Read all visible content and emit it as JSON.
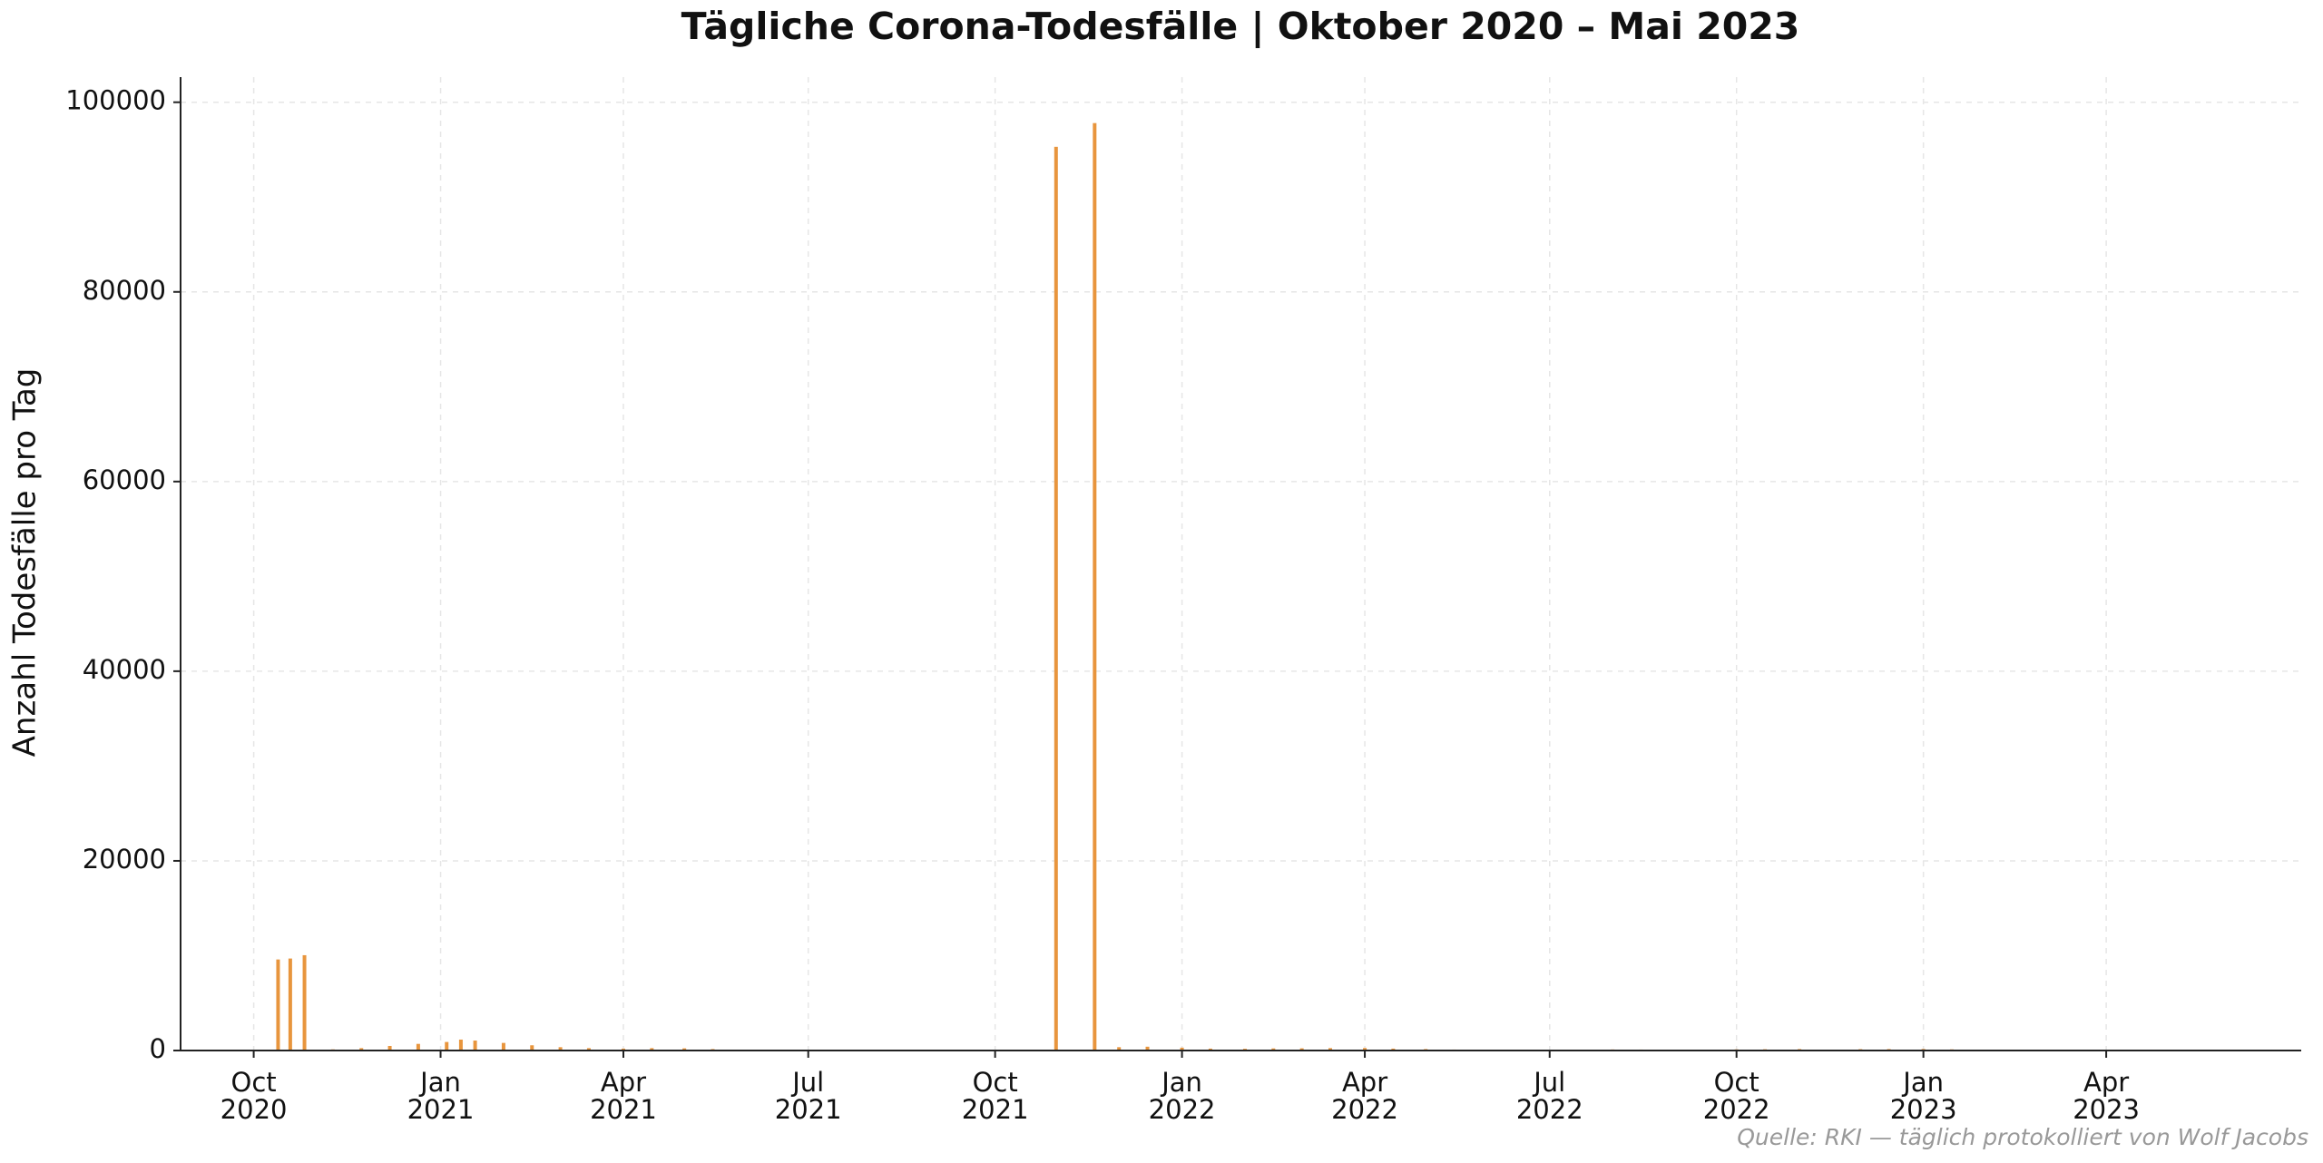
{
  "chart_data": {
    "type": "bar",
    "title": "Tägliche Corona-Todesfälle  |  Oktober 2020 – Mai 2023",
    "y_label": "Anzahl Todesfälle pro Tag",
    "source": "Quelle: RKI — täglich protokolliert von Wolf Jacobs",
    "color": "#e8953d",
    "grid": true,
    "x": [
      "2020-10-13",
      "2020-10-19",
      "2020-10-26",
      "2020-11-09",
      "2020-11-23",
      "2020-12-07",
      "2020-12-21",
      "2021-01-04",
      "2021-01-11",
      "2021-01-18",
      "2021-02-01",
      "2021-02-15",
      "2021-03-01",
      "2021-03-15",
      "2021-04-01",
      "2021-04-15",
      "2021-05-01",
      "2021-05-15",
      "2021-06-01",
      "2021-06-15",
      "2021-10-31",
      "2021-11-19",
      "2021-12-01",
      "2021-12-15",
      "2022-01-01",
      "2022-01-15",
      "2022-02-01",
      "2022-02-15",
      "2022-03-01",
      "2022-03-15",
      "2022-04-01",
      "2022-04-15",
      "2022-05-01",
      "2022-05-15",
      "2022-06-01",
      "2022-07-01",
      "2022-07-15",
      "2022-08-01",
      "2022-08-15",
      "2022-09-01",
      "2022-10-01",
      "2022-10-15",
      "2022-11-01",
      "2022-12-01",
      "2022-12-15",
      "2023-01-01",
      "2023-01-15",
      "2023-02-01",
      "2023-03-01",
      "2023-04-01",
      "2023-04-15"
    ],
    "values": [
      9600,
      9700,
      10050,
      120,
      250,
      480,
      700,
      900,
      1150,
      1050,
      800,
      550,
      350,
      250,
      200,
      250,
      230,
      150,
      80,
      40,
      95300,
      97800,
      350,
      400,
      300,
      200,
      180,
      220,
      230,
      250,
      260,
      200,
      150,
      100,
      60,
      50,
      80,
      110,
      100,
      80,
      120,
      130,
      150,
      140,
      150,
      160,
      120,
      80,
      50,
      30,
      20
    ],
    "xlim": [
      "2020-08-26",
      "2023-07-06"
    ],
    "xticks": [
      {
        "value": "2020-10-01",
        "label": "Oct\n2020"
      },
      {
        "value": "2021-01-01",
        "label": "Jan\n2021"
      },
      {
        "value": "2021-04-01",
        "label": "Apr\n2021"
      },
      {
        "value": "2021-07-01",
        "label": "Jul\n2021"
      },
      {
        "value": "2021-10-01",
        "label": "Oct\n2021"
      },
      {
        "value": "2022-01-01",
        "label": "Jan\n2022"
      },
      {
        "value": "2022-04-01",
        "label": "Apr\n2022"
      },
      {
        "value": "2022-07-01",
        "label": "Jul\n2022"
      },
      {
        "value": "2022-10-01",
        "label": "Oct\n2022"
      },
      {
        "value": "2023-01-01",
        "label": "Jan\n2023"
      },
      {
        "value": "2023-04-01",
        "label": "Apr\n2023"
      }
    ],
    "ylim": [
      0,
      102650
    ],
    "yticks": [
      0,
      20000,
      40000,
      60000,
      80000,
      100000
    ]
  }
}
